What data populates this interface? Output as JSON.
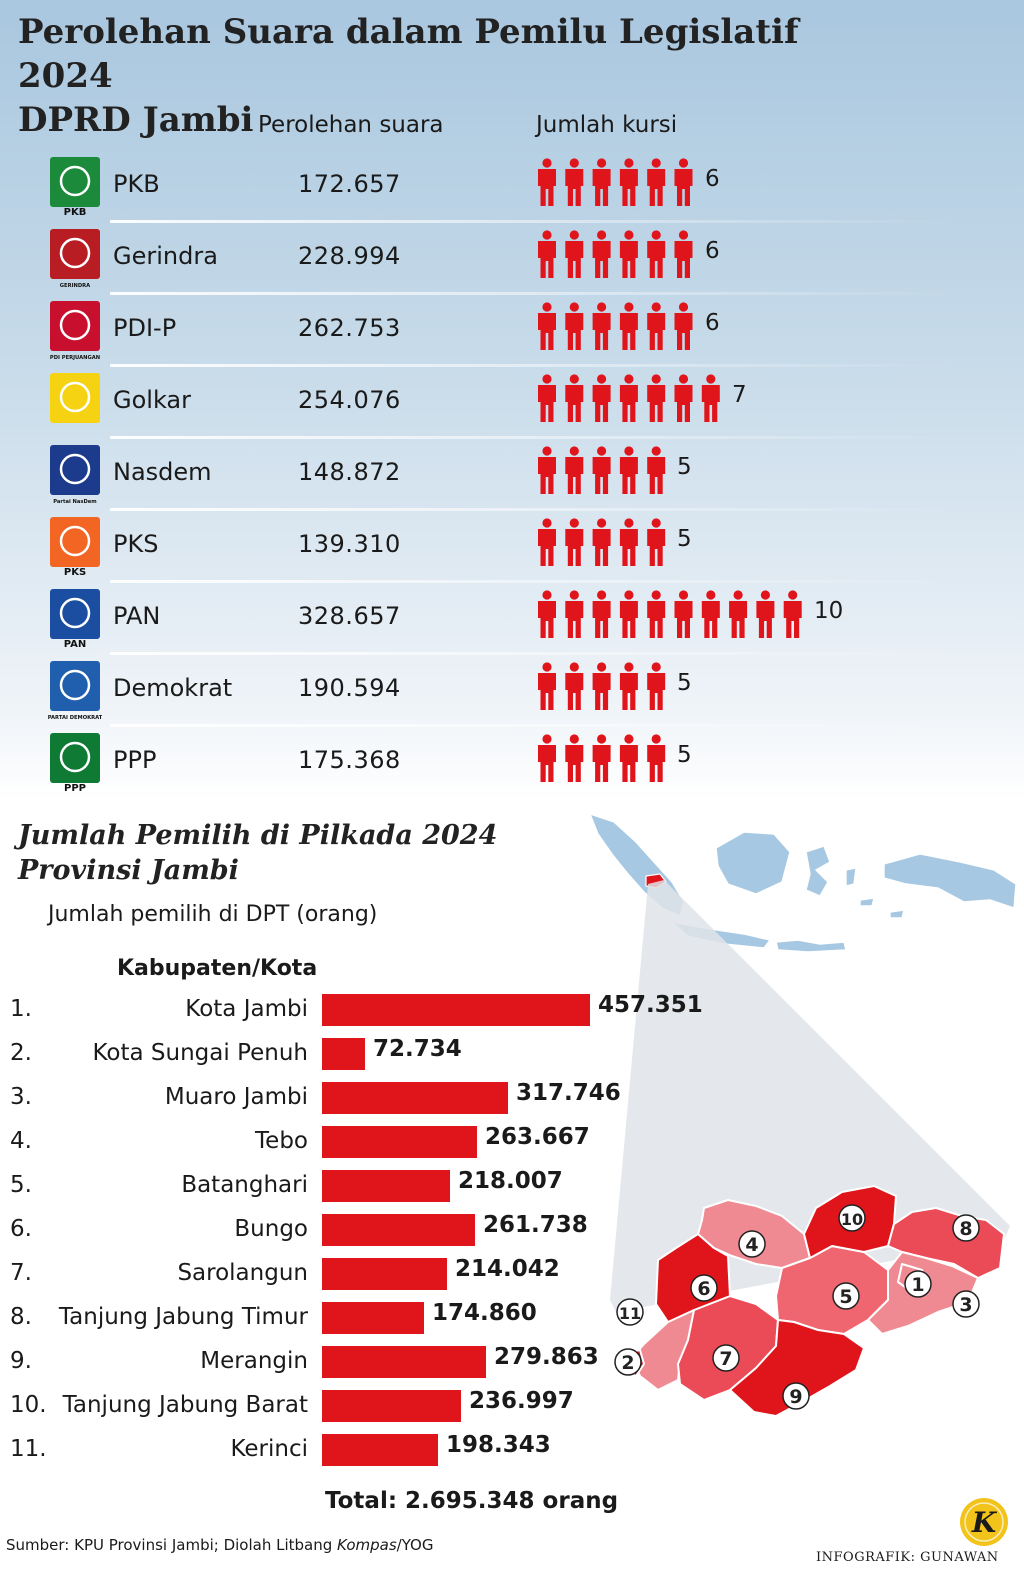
{
  "title": {
    "line1": "Perolehan Suara dalam Pemilu Legislatif 2024",
    "line2": "DPRD Jambi"
  },
  "headers": {
    "votes": "Perolehan suara",
    "seats": "Jumlah kursi"
  },
  "chart_data": [
    {
      "type": "table",
      "columns": [
        "Perolehan suara",
        "Jumlah kursi"
      ],
      "rows": [
        {
          "party": "PKB",
          "votes": "172.657",
          "seats": 6,
          "logo_text": "PKB",
          "logo_color": "#1b8a3b"
        },
        {
          "party": "Gerindra",
          "votes": "228.994",
          "seats": 6,
          "logo_text": "GERINDRA",
          "logo_color": "#b81d24"
        },
        {
          "party": "PDI-P",
          "votes": "262.753",
          "seats": 6,
          "logo_text": "PDI PERJUANGAN",
          "logo_color": "#c8102e"
        },
        {
          "party": "Golkar",
          "votes": "254.076",
          "seats": 7,
          "logo_text": "",
          "logo_color": "#f5d312"
        },
        {
          "party": "Nasdem",
          "votes": "148.872",
          "seats": 5,
          "logo_text": "Partai NasDem",
          "logo_color": "#1d3b8c"
        },
        {
          "party": "PKS",
          "votes": "139.310",
          "seats": 5,
          "logo_text": "PKS",
          "logo_color": "#f26522"
        },
        {
          "party": "PAN",
          "votes": "328.657",
          "seats": 10,
          "logo_text": "PAN",
          "logo_color": "#1b4ea1"
        },
        {
          "party": "Demokrat",
          "votes": "190.594",
          "seats": 5,
          "logo_text": "PARTAI DEMOKRAT",
          "logo_color": "#1f5fae"
        },
        {
          "party": "PPP",
          "votes": "175.368",
          "seats": 5,
          "logo_text": "PPP",
          "logo_color": "#0f7a34"
        }
      ],
      "icon": "person-icon",
      "icon_color": "#e0141b"
    },
    {
      "type": "bar",
      "orientation": "horizontal",
      "title": "",
      "ylabel": "Kabupaten/Kota",
      "categories": [
        "Kota Jambi",
        "Kota Sungai Penuh",
        "Muaro Jambi",
        "Tebo",
        "Batanghari",
        "Bungo",
        "Sarolangun",
        "Tanjung Jabung Timur",
        "Merangin",
        "Tanjung Jabung Barat",
        "Kerinci"
      ],
      "numbers": [
        "1.",
        "2.",
        "3.",
        "4.",
        "5.",
        "6.",
        "7.",
        "8.",
        "9.",
        "10.",
        "11."
      ],
      "values": [
        457351,
        72734,
        317746,
        263667,
        218007,
        261738,
        214042,
        174860,
        279863,
        236997,
        198343
      ],
      "value_labels": [
        "457.351",
        "72.734",
        "317.746",
        "263.667",
        "218.007",
        "261.738",
        "214.042",
        "174.860",
        "279.863",
        "236.997",
        "198.343"
      ],
      "xlim": [
        0,
        457351
      ],
      "bar_color": "#e0141b"
    }
  ],
  "section2": {
    "title_line1": "Jumlah Pemilih di Pilkada 2024",
    "title_line2": "Provinsi Jambi",
    "subtitle": "Jumlah pemilih di DPT (orang)",
    "col_header": "Kabupaten/Kota",
    "total": "Total: 2.695.348 orang"
  },
  "map_labels": [
    "1",
    "2",
    "3",
    "4",
    "5",
    "6",
    "7",
    "8",
    "9",
    "10",
    "11"
  ],
  "footer": {
    "source_prefix": "Sumber: KPU Provinsi Jambi; Diolah Litbang ",
    "source_italic": "Kompas",
    "source_suffix": "/YOG",
    "credit": "INFOGRAFIK: GUNAWAN",
    "logo_letter": "K"
  }
}
